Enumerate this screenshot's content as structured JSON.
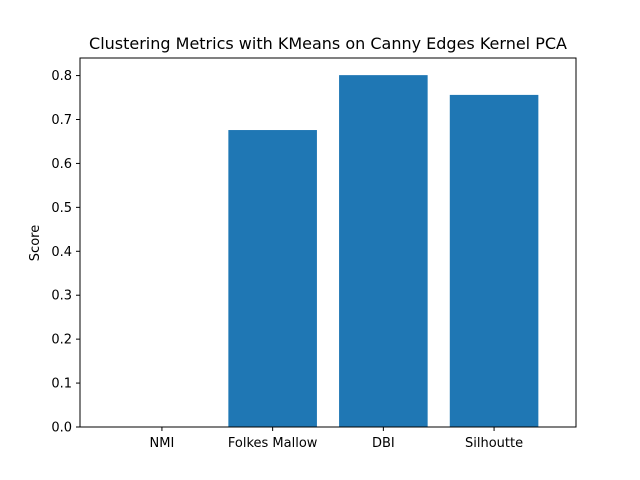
{
  "chart_data": {
    "type": "bar",
    "title": "Clustering Metrics with KMeans on Canny Edges Kernel PCA",
    "xlabel": "",
    "ylabel": "Score",
    "categories": [
      "NMI",
      "Folkes Mallow",
      "DBI",
      "Silhoutte"
    ],
    "values": [
      0.0,
      0.676,
      0.801,
      0.756
    ],
    "ylim": [
      0,
      0.84
    ],
    "yticks": [
      "0.0",
      "0.1",
      "0.2",
      "0.3",
      "0.4",
      "0.5",
      "0.6",
      "0.7",
      "0.8"
    ],
    "bar_color": "#1f77b4",
    "grid": false,
    "legend": "none"
  }
}
